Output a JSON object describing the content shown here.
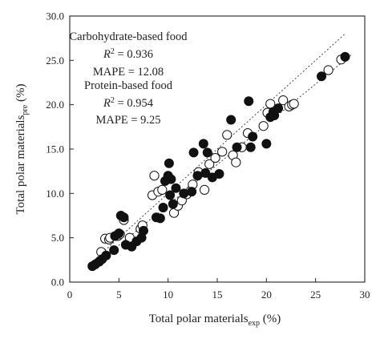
{
  "chart_data": {
    "type": "scatter",
    "xlabel": {
      "main": "Total polar materials",
      "sub": "exp",
      "unit": " (%)"
    },
    "ylabel": {
      "main": "Total polar materials",
      "sub": "pre",
      "unit": " (%)"
    },
    "xlim": [
      0,
      30
    ],
    "ylim": [
      0,
      30
    ],
    "xticks": [
      0,
      5,
      10,
      15,
      20,
      25,
      30
    ],
    "yticks": [
      0.0,
      5.0,
      10.0,
      15.0,
      20.0,
      25.0,
      30.0
    ],
    "xtick_labels": [
      "0",
      "5",
      "10",
      "15",
      "20",
      "25",
      "30"
    ],
    "ytick_labels": [
      "0.0",
      "5.0",
      "10.0",
      "15.0",
      "20.0",
      "25.0",
      "30.0"
    ],
    "grid": false,
    "annotations": {
      "carb_title": "Carbohydrate-based food",
      "carb_r2": "R",
      "carb_r2_value": " = 0.936",
      "carb_mape": "MAPE = 12.08",
      "prot_title": "Protein-based food",
      "prot_r2": "R",
      "prot_r2_value": " = 0.954",
      "prot_mape": "MAPE = 9.25"
    },
    "reference_lines": [
      {
        "style": "dotted",
        "x": [
          2.2,
          28.0
        ],
        "y": [
          2.2,
          28.0
        ]
      },
      {
        "style": "dotted",
        "x": [
          2.4,
          28.6
        ],
        "y": [
          1.8,
          25.6
        ]
      }
    ],
    "series": [
      {
        "marker": "filled",
        "points": [
          [
            2.3,
            1.8
          ],
          [
            2.6,
            2.0
          ],
          [
            3.0,
            2.3
          ],
          [
            3.3,
            2.6
          ],
          [
            3.7,
            3.0
          ],
          [
            4.5,
            3.6
          ],
          [
            4.6,
            5.2
          ],
          [
            5.0,
            5.5
          ],
          [
            5.2,
            7.5
          ],
          [
            5.5,
            7.3
          ],
          [
            5.7,
            4.2
          ],
          [
            6.3,
            4.0
          ],
          [
            6.8,
            4.6
          ],
          [
            7.3,
            5.0
          ],
          [
            7.5,
            5.8
          ],
          [
            8.8,
            7.3
          ],
          [
            9.2,
            7.2
          ],
          [
            9.5,
            8.4
          ],
          [
            9.7,
            11.4
          ],
          [
            10.1,
            13.4
          ],
          [
            10.0,
            12.0
          ],
          [
            10.3,
            11.6
          ],
          [
            10.2,
            9.8
          ],
          [
            10.5,
            8.8
          ],
          [
            10.8,
            10.6
          ],
          [
            11.6,
            10.0
          ],
          [
            12.4,
            10.2
          ],
          [
            12.6,
            14.6
          ],
          [
            13.0,
            12.0
          ],
          [
            13.6,
            15.6
          ],
          [
            13.8,
            12.3
          ],
          [
            14.0,
            14.6
          ],
          [
            14.5,
            11.8
          ],
          [
            15.2,
            12.2
          ],
          [
            16.4,
            18.3
          ],
          [
            17.0,
            15.2
          ],
          [
            18.2,
            20.4
          ],
          [
            18.4,
            15.2
          ],
          [
            18.6,
            16.4
          ],
          [
            20.0,
            15.6
          ],
          [
            20.4,
            18.6
          ],
          [
            20.7,
            19.2
          ],
          [
            20.8,
            18.8
          ],
          [
            21.2,
            19.6
          ],
          [
            25.6,
            23.2
          ],
          [
            28.0,
            25.4
          ]
        ]
      },
      {
        "marker": "open",
        "points": [
          [
            3.6,
            4.9
          ],
          [
            3.2,
            3.4
          ],
          [
            4.0,
            4.8
          ],
          [
            4.1,
            5.0
          ],
          [
            4.9,
            5.2
          ],
          [
            5.1,
            5.4
          ],
          [
            5.5,
            7.0
          ],
          [
            6.1,
            5.0
          ],
          [
            7.2,
            6.0
          ],
          [
            7.4,
            6.4
          ],
          [
            8.4,
            9.8
          ],
          [
            8.6,
            12.0
          ],
          [
            9.0,
            10.2
          ],
          [
            9.4,
            10.4
          ],
          [
            10.6,
            7.8
          ],
          [
            11.0,
            8.6
          ],
          [
            11.4,
            9.2
          ],
          [
            11.9,
            9.9
          ],
          [
            12.3,
            10.3
          ],
          [
            12.5,
            11.0
          ],
          [
            13.1,
            12.4
          ],
          [
            13.7,
            10.4
          ],
          [
            14.2,
            13.3
          ],
          [
            14.8,
            14.0
          ],
          [
            15.5,
            14.7
          ],
          [
            16.0,
            16.6
          ],
          [
            16.6,
            14.3
          ],
          [
            16.9,
            13.5
          ],
          [
            17.5,
            15.2
          ],
          [
            18.1,
            16.8
          ],
          [
            19.7,
            17.6
          ],
          [
            20.1,
            19.1
          ],
          [
            20.4,
            20.1
          ],
          [
            21.7,
            20.5
          ],
          [
            22.3,
            19.8
          ],
          [
            22.6,
            20.0
          ],
          [
            22.8,
            20.1
          ],
          [
            26.3,
            23.9
          ],
          [
            27.6,
            25.1
          ]
        ]
      }
    ]
  }
}
